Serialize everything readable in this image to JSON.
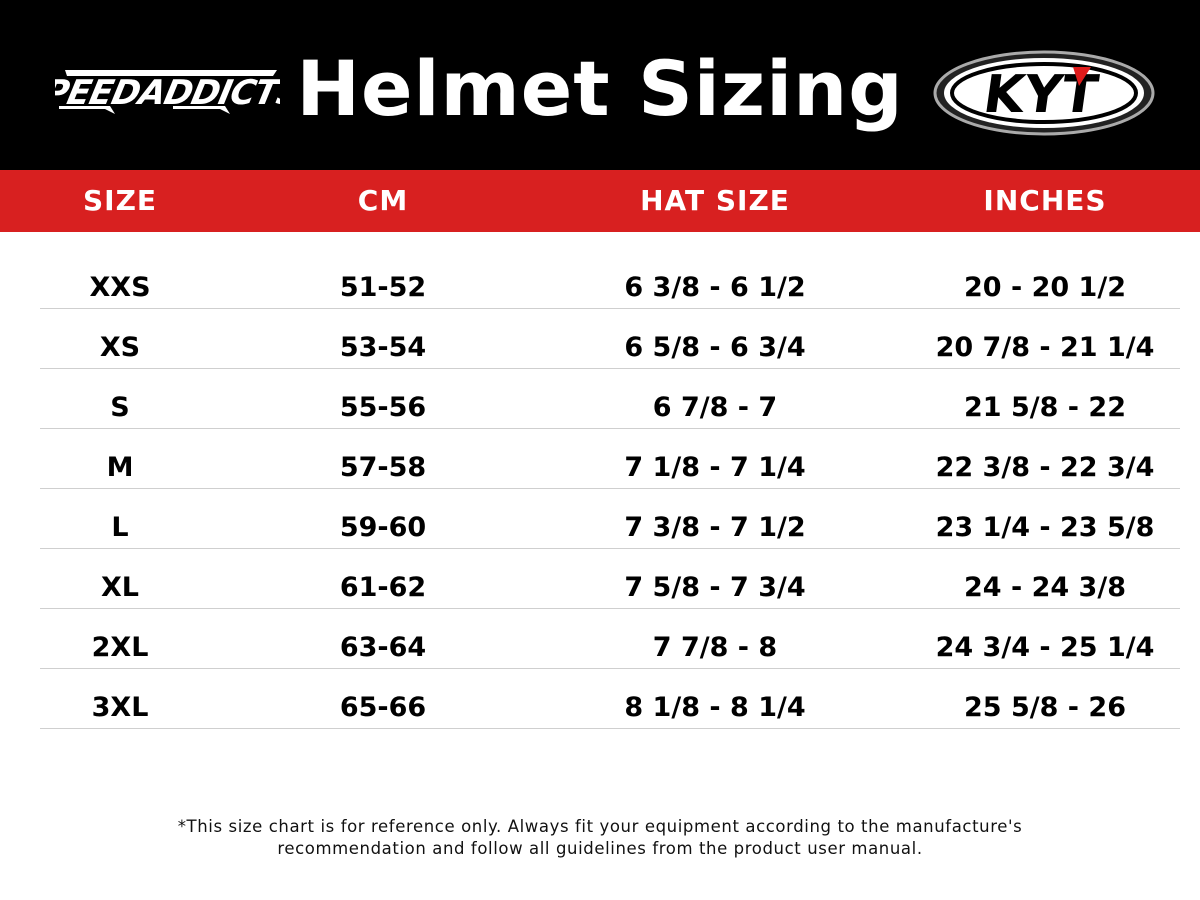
{
  "header": {
    "title": "Helmet Sizing",
    "left_logo": "SpeedAddicts",
    "right_logo": "KYT",
    "colors": {
      "background": "#000000",
      "accent": "#d82020"
    }
  },
  "table": {
    "columns": [
      "SIZE",
      "CM",
      "HAT SIZE",
      "INCHES"
    ],
    "rows": [
      [
        "XXS",
        "51-52",
        "6 3/8 - 6 1/2",
        "20 - 20 1/2"
      ],
      [
        "XS",
        "53-54",
        "6 5/8 - 6 3/4",
        "20 7/8 - 21 1/4"
      ],
      [
        "S",
        "55-56",
        "6 7/8 - 7",
        "21 5/8 - 22"
      ],
      [
        "M",
        "57-58",
        "7 1/8 - 7 1/4",
        "22 3/8 - 22 3/4"
      ],
      [
        "L",
        "59-60",
        "7 3/8 - 7 1/2",
        "23 1/4 - 23 5/8"
      ],
      [
        "XL",
        "61-62",
        "7 5/8 - 7 3/4",
        "24 - 24 3/8"
      ],
      [
        "2XL",
        "63-64",
        "7 7/8 - 8",
        "24 3/4 - 25 1/4"
      ],
      [
        "3XL",
        "65-66",
        "8 1/8 - 8 1/4",
        "25 5/8 - 26"
      ]
    ]
  },
  "footer": {
    "line1": "*This size chart is for reference only. Always fit your equipment according to the manufacture's",
    "line2": "recommendation and follow all guidelines from the product user manual."
  }
}
